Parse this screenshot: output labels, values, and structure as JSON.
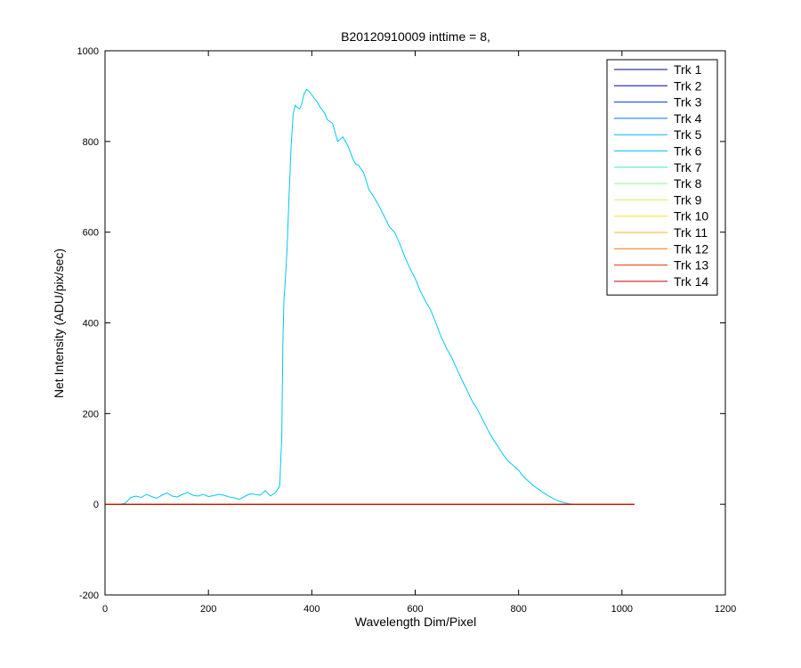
{
  "chart_data": {
    "type": "line",
    "title": "B20120910009 inttime = 8,",
    "xlabel": "Wavelength Dim/Pixel",
    "ylabel": "Net Intensity (ADU/pix/sec)",
    "xlim": [
      0,
      1200
    ],
    "ylim": [
      -200,
      1000
    ],
    "xticks": [
      0,
      200,
      400,
      600,
      800,
      1000,
      1200
    ],
    "yticks": [
      -200,
      0,
      200,
      400,
      600,
      800,
      1000
    ],
    "grid": false,
    "legend_position": "top-right",
    "series": [
      {
        "name": "Trk 1",
        "color": "#000090",
        "x": [
          1,
          1024
        ],
        "y": [
          0,
          0
        ]
      },
      {
        "name": "Trk 2",
        "color": "#0000d0",
        "x": [
          1,
          1024
        ],
        "y": [
          0,
          0
        ]
      },
      {
        "name": "Trk 3",
        "color": "#0030ff",
        "x": [
          1,
          1024
        ],
        "y": [
          0,
          0
        ]
      },
      {
        "name": "Trk 4",
        "color": "#0070ff",
        "x": [
          1,
          1024
        ],
        "y": [
          0,
          0
        ]
      },
      {
        "name": "Trk 5",
        "color": "#00b0ff",
        "x": [
          1,
          1024
        ],
        "y": [
          0,
          0
        ]
      },
      {
        "name": "Trk 6",
        "color": "#00c8ee",
        "x": [
          1,
          30,
          40,
          50,
          60,
          70,
          80,
          90,
          100,
          110,
          120,
          130,
          140,
          150,
          160,
          170,
          180,
          190,
          200,
          210,
          220,
          230,
          240,
          250,
          260,
          270,
          280,
          290,
          300,
          310,
          320,
          330,
          338,
          342,
          344,
          346,
          348,
          352,
          356,
          360,
          364,
          368,
          372,
          376,
          380,
          385,
          390,
          395,
          400,
          405,
          410,
          415,
          420,
          425,
          430,
          440,
          450,
          460,
          470,
          480,
          485,
          490,
          495,
          500,
          505,
          510,
          520,
          530,
          540,
          550,
          560,
          570,
          580,
          590,
          600,
          610,
          620,
          630,
          640,
          650,
          660,
          670,
          680,
          690,
          700,
          710,
          720,
          730,
          740,
          750,
          760,
          770,
          780,
          790,
          800,
          810,
          820,
          830,
          840,
          850,
          860,
          870,
          880,
          890,
          900,
          910,
          920,
          930,
          940,
          950,
          960,
          970,
          980,
          990,
          1000,
          1010,
          1024
        ],
        "y": [
          0,
          0,
          3,
          15,
          18,
          15,
          22,
          17,
          13,
          20,
          25,
          18,
          16,
          22,
          26,
          20,
          18,
          22,
          17,
          19,
          22,
          20,
          16,
          14,
          11,
          17,
          23,
          22,
          20,
          30,
          18,
          26,
          40,
          150,
          350,
          450,
          480,
          560,
          680,
          790,
          860,
          880,
          875,
          872,
          880,
          905,
          915,
          910,
          903,
          895,
          888,
          878,
          870,
          862,
          848,
          840,
          800,
          810,
          790,
          760,
          750,
          748,
          740,
          732,
          715,
          695,
          678,
          658,
          635,
          612,
          600,
          575,
          545,
          520,
          498,
          470,
          448,
          428,
          400,
          370,
          345,
          325,
          300,
          275,
          252,
          228,
          210,
          188,
          165,
          145,
          128,
          110,
          95,
          85,
          75,
          60,
          50,
          40,
          32,
          24,
          17,
          11,
          6,
          3,
          1,
          0,
          0,
          0,
          0,
          0,
          0,
          0,
          0,
          0,
          0,
          0,
          0
        ]
      },
      {
        "name": "Trk 7",
        "color": "#40e8c0",
        "x": [
          1,
          1024
        ],
        "y": [
          0,
          0
        ]
      },
      {
        "name": "Trk 8",
        "color": "#90f090",
        "x": [
          1,
          1024
        ],
        "y": [
          0,
          0
        ]
      },
      {
        "name": "Trk 9",
        "color": "#d0f060",
        "x": [
          1,
          1024
        ],
        "y": [
          0,
          0
        ]
      },
      {
        "name": "Trk 10",
        "color": "#f0e020",
        "x": [
          1,
          1024
        ],
        "y": [
          0,
          0
        ]
      },
      {
        "name": "Trk 11",
        "color": "#f0b020",
        "x": [
          1,
          1024
        ],
        "y": [
          0,
          0
        ]
      },
      {
        "name": "Trk 12",
        "color": "#ff7000",
        "x": [
          1,
          1024
        ],
        "y": [
          0,
          0
        ]
      },
      {
        "name": "Trk 13",
        "color": "#f03000",
        "x": [
          1,
          1024
        ],
        "y": [
          0,
          0
        ]
      },
      {
        "name": "Trk 14",
        "color": "#c00000",
        "x": [
          1,
          1024
        ],
        "y": [
          0,
          0
        ]
      }
    ]
  }
}
